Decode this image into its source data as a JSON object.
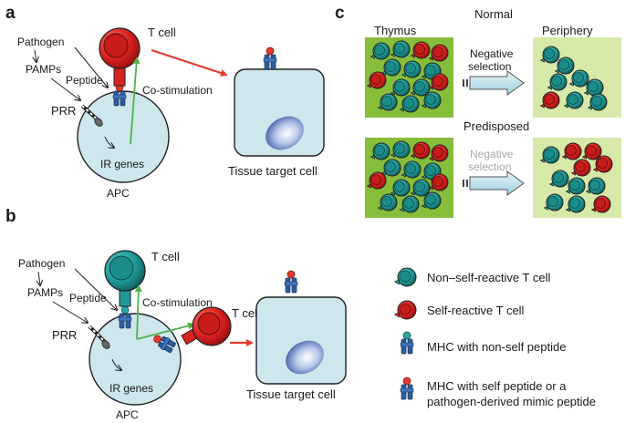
{
  "panels": {
    "a": {
      "letter": "a",
      "t_cell": "T cell",
      "pathogen": "Pathogen",
      "pamps": "PAMPs",
      "peptide": "Peptide",
      "prr": "PRR",
      "co_stimulation": "Co-stimulation",
      "ir_genes": "IR genes",
      "apc": "APC",
      "tissue_target_cell": "Tissue target cell"
    },
    "b": {
      "letter": "b",
      "t_cell_top": "T cell",
      "pathogen": "Pathogen",
      "pamps": "PAMPs",
      "peptide": "Peptide",
      "co_stimulation": "Co-stimulation",
      "t_cell_right": "T cell",
      "prr": "PRR",
      "ir_genes": "IR genes",
      "apc": "APC",
      "tissue_target_cell": "Tissue target cell"
    },
    "c": {
      "letter": "c",
      "normal": "Normal",
      "thymus": "Thymus",
      "periphery": "Periphery",
      "negative_selection_1": "Negative",
      "negative_selection_2": "selection",
      "predisposed": "Predisposed",
      "negative_selection_faded_1": "Negative",
      "negative_selection_faded_2": "selection"
    }
  },
  "legend": {
    "non_self_reactive": "Non–self-reactive T cell",
    "self_reactive": "Self-reactive T cell",
    "mhc_non_self": "MHC with non-self peptide",
    "mhc_self_line1": "MHC with self peptide or a",
    "mhc_self_line2": "pathogen-derived mimic peptide"
  },
  "colors": {
    "self_reactive_red": "#d9211f",
    "non_self_teal": "#1f9a97",
    "mhc_blue": "#2f5d9a",
    "cell_fill": "#cde7ec",
    "thymus_green": "#86bd3a",
    "periphery_green": "#d6e9a8",
    "arrow_red": "#e63a2a",
    "arrow_green": "#4db34a"
  }
}
